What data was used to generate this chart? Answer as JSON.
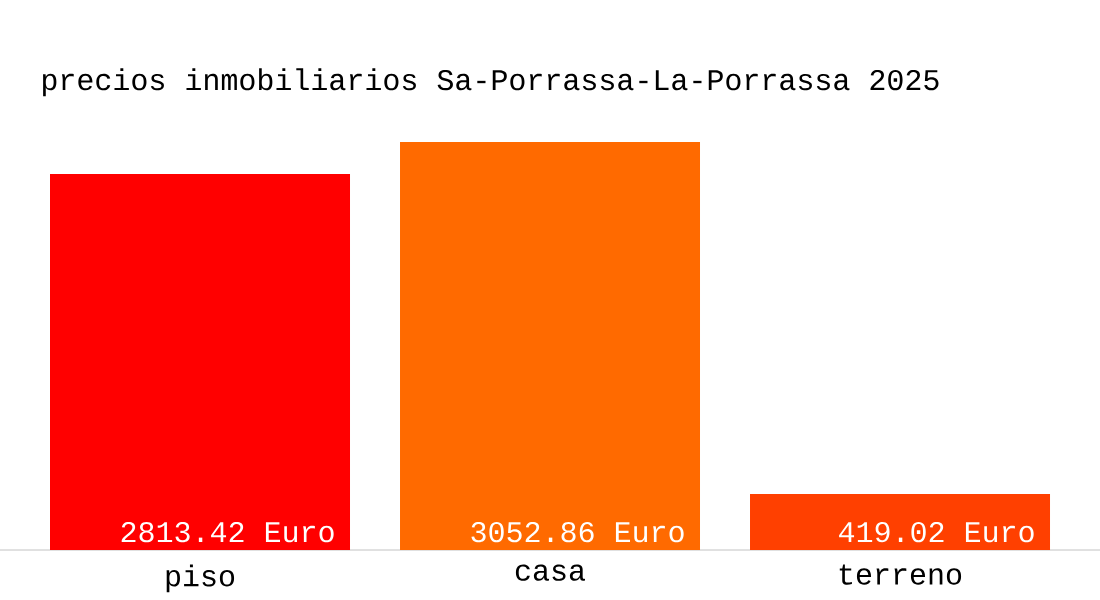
{
  "chart_data": {
    "type": "bar",
    "title": "precios inmobiliarios Sa-Porrassa-La-Porrassa 2025",
    "categories": [
      "piso",
      "casa",
      "terreno"
    ],
    "values": [
      2813.42,
      3052.86,
      419.02
    ],
    "value_labels": [
      "2813.42 Euro",
      "3052.86 Euro",
      "419.02 Euro"
    ],
    "colors": [
      "#ff0000",
      "#ff6a00",
      "#ff4000"
    ]
  }
}
